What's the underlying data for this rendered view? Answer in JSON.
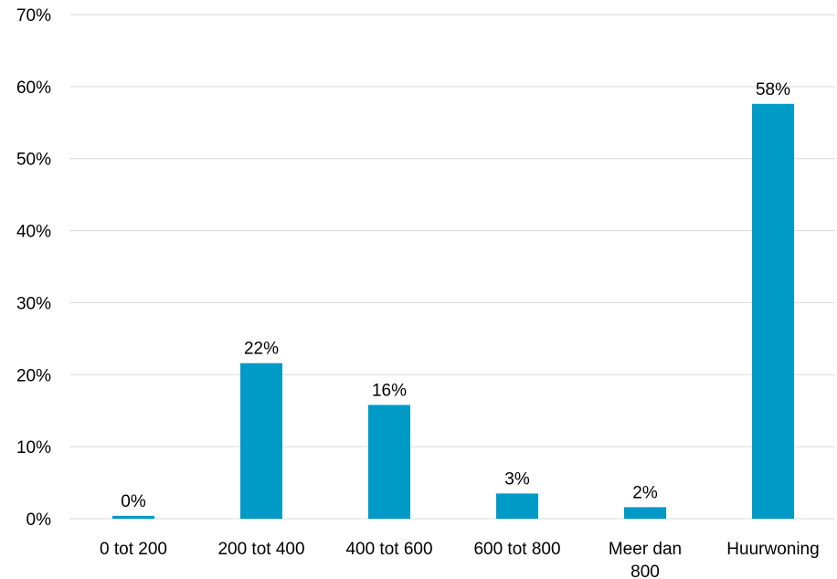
{
  "chart_data": {
    "type": "bar",
    "title": "",
    "xlabel": "",
    "ylabel": "",
    "categories": [
      "0 tot 200",
      "200 tot 400",
      "400 tot 600",
      "600 tot 800",
      "Meer dan 800",
      "Huurwoning"
    ],
    "values": [
      0.4,
      21.6,
      15.8,
      3.5,
      1.6,
      57.6
    ],
    "data_labels": [
      "0%",
      "22%",
      "16%",
      "3%",
      "2%",
      "58%"
    ],
    "ylim": [
      0,
      70
    ],
    "yticks": [
      0,
      10,
      20,
      30,
      40,
      50,
      60,
      70
    ],
    "ytick_labels": [
      "0%",
      "10%",
      "20%",
      "30%",
      "40%",
      "50%",
      "60%",
      "70%"
    ],
    "grid": true,
    "legend": "none",
    "bar_color": "#009ac7"
  }
}
